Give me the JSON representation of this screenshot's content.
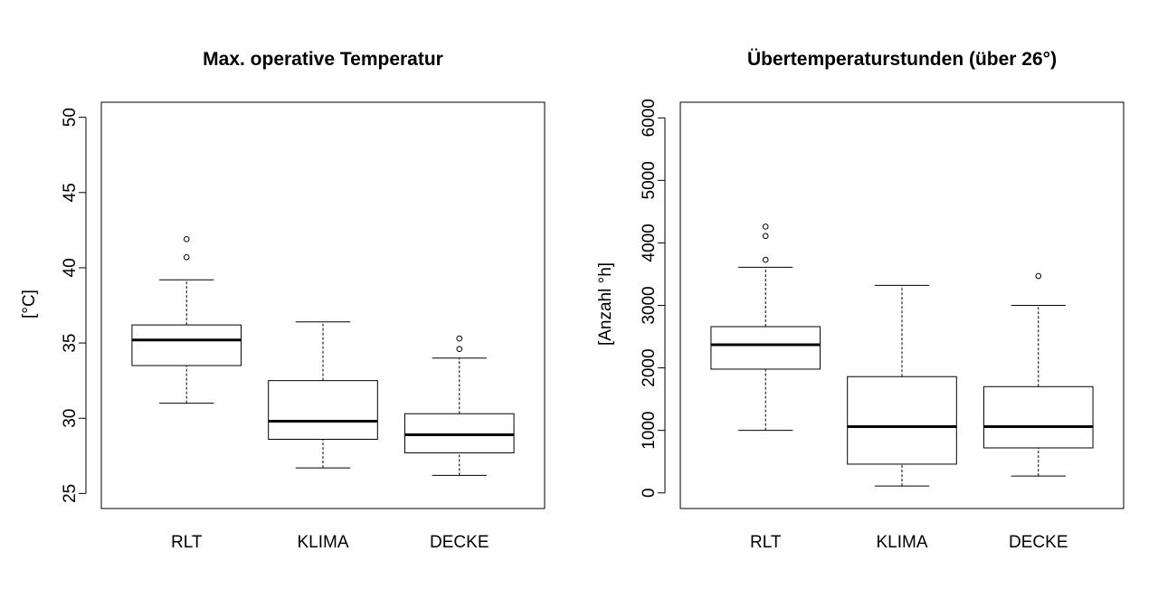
{
  "chart_data": [
    {
      "type": "boxplot",
      "title": "Max. operative Temperatur",
      "xlabel": "",
      "ylabel": "[°C]",
      "ylim": [
        24,
        51
      ],
      "yticks": [
        "25",
        "30",
        "35",
        "40",
        "45",
        "50"
      ],
      "categories": [
        "RLT",
        "KLIMA",
        "DECKE"
      ],
      "boxes": [
        {
          "name": "RLT",
          "whisker_low": 31.0,
          "q1": 33.5,
          "median": 35.2,
          "q3": 36.2,
          "whisker_high": 39.2,
          "outliers": [
            40.7,
            41.9
          ]
        },
        {
          "name": "KLIMA",
          "whisker_low": 26.7,
          "q1": 28.6,
          "median": 29.8,
          "q3": 32.5,
          "whisker_high": 36.4,
          "outliers": []
        },
        {
          "name": "DECKE",
          "whisker_low": 26.2,
          "q1": 27.7,
          "median": 28.9,
          "q3": 30.3,
          "whisker_high": 34.0,
          "outliers": [
            34.6,
            35.3
          ]
        }
      ]
    },
    {
      "type": "boxplot",
      "title": "Übertemperaturstunden (über 26°)",
      "xlabel": "",
      "ylabel": "[Anzahl °h]",
      "ylim": [
        -250,
        6250
      ],
      "yticks": [
        "0",
        "1000",
        "2000",
        "3000",
        "4000",
        "5000",
        "6000"
      ],
      "categories": [
        "RLT",
        "KLIMA",
        "DECKE"
      ],
      "boxes": [
        {
          "name": "RLT",
          "whisker_low": 1000,
          "q1": 1980,
          "median": 2370,
          "q3": 2660,
          "whisker_high": 3610,
          "outliers": [
            3730,
            4110,
            4260
          ]
        },
        {
          "name": "KLIMA",
          "whisker_low": 110,
          "q1": 460,
          "median": 1060,
          "q3": 1860,
          "whisker_high": 3320,
          "outliers": []
        },
        {
          "name": "DECKE",
          "whisker_low": 270,
          "q1": 720,
          "median": 1060,
          "q3": 1700,
          "whisker_high": 3000,
          "outliers": [
            3470
          ]
        }
      ]
    }
  ]
}
